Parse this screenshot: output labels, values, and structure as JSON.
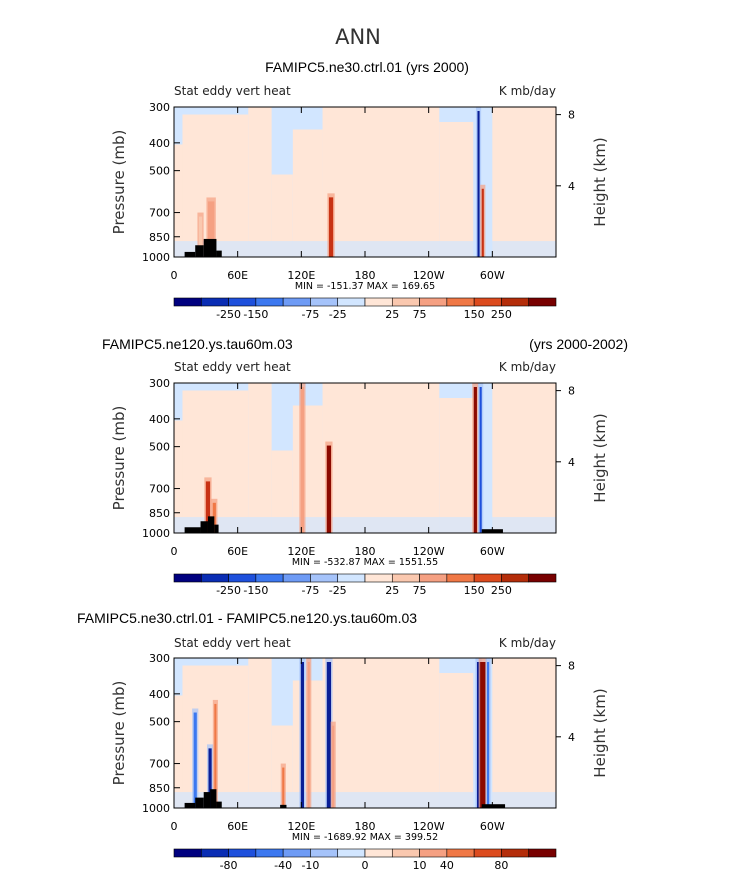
{
  "page_title": "ANN",
  "chart_data": [
    {
      "type": "heatmap",
      "title_left": "FAMIPC5.ne30.ctrl.01 (yrs 2000)",
      "title_right": "",
      "subtitle_left": "Stat eddy vert heat",
      "subtitle_right": "K mb/day",
      "ylabel": "Pressure (mb)",
      "ylabel_right": "Height (km)",
      "yticks": [
        300,
        400,
        500,
        700,
        850,
        1000
      ],
      "yticks_right": [
        "8",
        "4"
      ],
      "yticks_right_km": [
        8,
        4
      ],
      "xticks": [
        "0",
        "60E",
        "120E",
        "180",
        "120W",
        "60W"
      ],
      "xticks_lon": [
        0,
        60,
        120,
        180,
        240,
        300
      ],
      "xlim": [
        0,
        360
      ],
      "ylim": [
        1000,
        300
      ],
      "min_max_text": "MIN = -151.37   MAX = 169.65",
      "colorbar_colors": [
        "#00007f",
        "#0a2db4",
        "#1e50dc",
        "#3c78f0",
        "#6e9bf5",
        "#a5c3fa",
        "#d2e6ff",
        "#ffe6d7",
        "#fac8af",
        "#f5a082",
        "#f07846",
        "#dc4b1e",
        "#b42d0a",
        "#780000"
      ],
      "colorbar_labels": [
        "-250",
        "-150",
        "-75",
        "-25",
        "25",
        "75",
        "150",
        "250"
      ],
      "features": [
        {
          "lon": 35,
          "width": 6,
          "top": 620,
          "sign": "pos",
          "strength": 0.55
        },
        {
          "lon": 25,
          "width": 3,
          "top": 700,
          "sign": "pos",
          "strength": 0.4
        },
        {
          "lon": 148,
          "width": 4,
          "top": 600,
          "sign": "pos",
          "strength": 0.85
        },
        {
          "lon": 287,
          "width": 2,
          "top": 300,
          "sign": "neg",
          "strength": 1.0
        },
        {
          "lon": 291,
          "width": 2,
          "top": 560,
          "sign": "pos",
          "strength": 0.8
        }
      ],
      "terrain": [
        {
          "lon0": 10,
          "lon1": 20,
          "p": 960
        },
        {
          "lon0": 20,
          "lon1": 28,
          "p": 910
        },
        {
          "lon0": 28,
          "lon1": 40,
          "p": 865
        },
        {
          "lon0": 40,
          "lon1": 45,
          "p": 950
        }
      ]
    },
    {
      "type": "heatmap",
      "title_left": "FAMIPC5.ne120.ys.tau60m.03",
      "title_right": "(yrs 2000-2002)",
      "subtitle_left": "Stat eddy vert heat",
      "subtitle_right": "K mb/day",
      "ylabel": "Pressure (mb)",
      "ylabel_right": "Height (km)",
      "yticks": [
        300,
        400,
        500,
        700,
        850,
        1000
      ],
      "yticks_right": [
        "8",
        "4"
      ],
      "yticks_right_km": [
        8,
        4
      ],
      "xticks": [
        "0",
        "60E",
        "120E",
        "180",
        "120W",
        "60W"
      ],
      "xticks_lon": [
        0,
        60,
        120,
        180,
        240,
        300
      ],
      "xlim": [
        0,
        360
      ],
      "ylim": [
        1000,
        300
      ],
      "min_max_text": "MIN = -532.87   MAX = 1551.55",
      "colorbar_colors": [
        "#00007f",
        "#0a2db4",
        "#1e50dc",
        "#3c78f0",
        "#6e9bf5",
        "#a5c3fa",
        "#d2e6ff",
        "#ffe6d7",
        "#fac8af",
        "#f5a082",
        "#f07846",
        "#dc4b1e",
        "#b42d0a",
        "#780000"
      ],
      "colorbar_labels": [
        "-250",
        "-150",
        "-75",
        "-25",
        "25",
        "75",
        "150",
        "250"
      ],
      "features": [
        {
          "lon": 32,
          "width": 4,
          "top": 640,
          "sign": "pos",
          "strength": 0.85
        },
        {
          "lon": 38,
          "width": 3,
          "top": 760,
          "sign": "pos",
          "strength": 0.6
        },
        {
          "lon": 121,
          "width": 3,
          "top": 300,
          "sign": "pos",
          "strength": 0.5
        },
        {
          "lon": 146,
          "width": 4,
          "top": 480,
          "sign": "pos",
          "strength": 1.0
        },
        {
          "lon": 284,
          "width": 3,
          "top": 300,
          "sign": "pos",
          "strength": 1.0
        },
        {
          "lon": 289,
          "width": 2,
          "top": 300,
          "sign": "neg",
          "strength": 0.8
        }
      ],
      "terrain": [
        {
          "lon0": 10,
          "lon1": 25,
          "p": 955
        },
        {
          "lon0": 25,
          "lon1": 32,
          "p": 910
        },
        {
          "lon0": 32,
          "lon1": 38,
          "p": 875
        },
        {
          "lon0": 38,
          "lon1": 42,
          "p": 935
        },
        {
          "lon0": 290,
          "lon1": 310,
          "p": 970
        }
      ]
    },
    {
      "type": "heatmap",
      "title_left": "FAMIPC5.ne30.ctrl.01 - FAMIPC5.ne120.ys.tau60m.03",
      "title_right": "",
      "subtitle_left": "Stat eddy vert heat",
      "subtitle_right": "K mb/day",
      "ylabel": "Pressure (mb)",
      "ylabel_right": "Height (km)",
      "yticks": [
        300,
        400,
        500,
        700,
        850,
        1000
      ],
      "yticks_right": [
        "8",
        "4"
      ],
      "yticks_right_km": [
        8,
        4
      ],
      "xticks": [
        "0",
        "60E",
        "120E",
        "180",
        "120W",
        "60W"
      ],
      "xticks_lon": [
        0,
        60,
        120,
        180,
        240,
        300
      ],
      "xlim": [
        0,
        360
      ],
      "ylim": [
        1000,
        300
      ],
      "min_max_text": "MIN = -1689.92   MAX = 399.52",
      "colorbar_colors": [
        "#00007f",
        "#0a2db4",
        "#1e50dc",
        "#3c78f0",
        "#6e9bf5",
        "#a5c3fa",
        "#d2e6ff",
        "#ffe6d7",
        "#fac8af",
        "#f5a082",
        "#f07846",
        "#dc4b1e",
        "#b42d0a",
        "#780000"
      ],
      "colorbar_labels": [
        "-80",
        "-40",
        "-10",
        "0",
        "10",
        "40",
        "80"
      ],
      "features": [
        {
          "lon": 20,
          "width": 3,
          "top": 450,
          "sign": "neg",
          "strength": 0.7
        },
        {
          "lon": 34,
          "width": 3,
          "top": 600,
          "sign": "neg",
          "strength": 1.0
        },
        {
          "lon": 39,
          "width": 2,
          "top": 420,
          "sign": "pos",
          "strength": 0.6
        },
        {
          "lon": 103,
          "width": 2,
          "top": 700,
          "sign": "pos",
          "strength": 0.6
        },
        {
          "lon": 121,
          "width": 3,
          "top": 300,
          "sign": "neg",
          "strength": 1.0
        },
        {
          "lon": 127,
          "width": 2,
          "top": 300,
          "sign": "pos",
          "strength": 0.5
        },
        {
          "lon": 146,
          "width": 4,
          "top": 300,
          "sign": "neg",
          "strength": 1.0
        },
        {
          "lon": 150,
          "width": 2,
          "top": 500,
          "sign": "pos",
          "strength": 0.5
        },
        {
          "lon": 287,
          "width": 3,
          "top": 300,
          "sign": "neg",
          "strength": 1.0
        },
        {
          "lon": 291,
          "width": 5,
          "top": 300,
          "sign": "pos",
          "strength": 1.0
        },
        {
          "lon": 296,
          "width": 2,
          "top": 300,
          "sign": "neg",
          "strength": 0.6
        }
      ],
      "terrain": [
        {
          "lon0": 10,
          "lon1": 20,
          "p": 960
        },
        {
          "lon0": 20,
          "lon1": 28,
          "p": 920
        },
        {
          "lon0": 28,
          "lon1": 34,
          "p": 880
        },
        {
          "lon0": 34,
          "lon1": 40,
          "p": 860
        },
        {
          "lon0": 40,
          "lon1": 45,
          "p": 950
        },
        {
          "lon0": 100,
          "lon1": 106,
          "p": 975
        },
        {
          "lon0": 290,
          "lon1": 312,
          "p": 970
        }
      ]
    }
  ]
}
